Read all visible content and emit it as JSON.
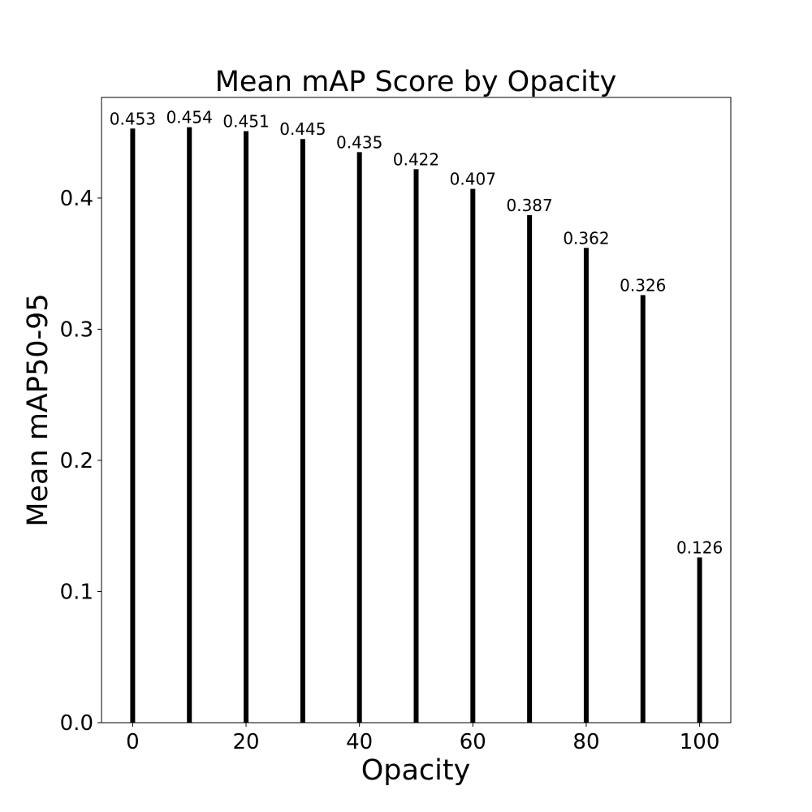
{
  "chart_data": {
    "type": "bar",
    "title": "Mean mAP Score by Opacity",
    "xlabel": "Opacity",
    "ylabel": "Mean mAP50-95",
    "x": [
      0,
      10,
      20,
      30,
      40,
      50,
      60,
      70,
      80,
      90,
      100
    ],
    "values": [
      0.453,
      0.454,
      0.451,
      0.445,
      0.435,
      0.422,
      0.407,
      0.387,
      0.362,
      0.326,
      0.126
    ],
    "data_labels": [
      "0.453",
      "0.454",
      "0.451",
      "0.445",
      "0.435",
      "0.422",
      "0.407",
      "0.387",
      "0.362",
      "0.326",
      "0.126"
    ],
    "xticks": [
      0,
      20,
      40,
      60,
      80,
      100
    ],
    "xtick_labels": [
      "0",
      "20",
      "40",
      "60",
      "80",
      "100"
    ],
    "yticks": [
      0.0,
      0.1,
      0.2,
      0.3,
      0.4
    ],
    "ytick_labels": [
      "0.0",
      "0.1",
      "0.2",
      "0.3",
      "0.4"
    ],
    "xlim": [
      -5.5,
      105.5
    ],
    "ylim": [
      0,
      0.4767
    ],
    "bar_color": "#000000",
    "grid": false,
    "legend": "none"
  }
}
